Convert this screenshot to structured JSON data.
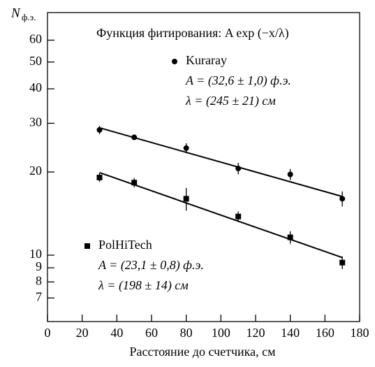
{
  "chart_data": {
    "type": "scatter",
    "xlabel": "Расстояние до счетчика, см",
    "ylabel": "N",
    "ylabel_sub": "ф.э.",
    "annotation": "Функция фитирования: A exp (−x/λ)",
    "log_y": true,
    "xlim": [
      0,
      180
    ],
    "xticks": [
      0,
      20,
      40,
      60,
      80,
      100,
      120,
      140,
      160,
      180
    ],
    "ylim": [
      5.75,
      75.5
    ],
    "yticks": [
      7,
      8,
      9,
      10,
      20,
      30,
      40,
      50,
      60
    ],
    "series": [
      {
        "name": "Kuraray",
        "marker": "circle",
        "color": "#000",
        "x": [
          30,
          50,
          80,
          110,
          140,
          170
        ],
        "values": [
          28.4,
          26.7,
          24.4,
          20.6,
          19.6,
          16.0
        ],
        "errors": [
          1.0,
          0.6,
          1.0,
          1.0,
          0.9,
          1.0
        ],
        "params": [
          "A = (32,6 ± 1,0) ф.э.",
          "λ = (245 ± 21) см"
        ],
        "fit": {
          "x": [
            30,
            170
          ],
          "values": [
            28.9,
            16.3
          ]
        }
      },
      {
        "name": "PolHiTech",
        "marker": "square",
        "color": "#000",
        "x": [
          30,
          50,
          80,
          110,
          140,
          170
        ],
        "values": [
          19.1,
          18.3,
          16.0,
          13.8,
          11.6,
          9.4
        ],
        "errors": [
          0.7,
          0.7,
          1.5,
          0.6,
          0.6,
          0.5
        ],
        "params": [
          "A = (23,1 ± 0,8) ф.э.",
          "λ = (198 ± 14) см"
        ],
        "fit": {
          "x": [
            30,
            170
          ],
          "values": [
            19.9,
            9.8
          ]
        }
      }
    ]
  }
}
